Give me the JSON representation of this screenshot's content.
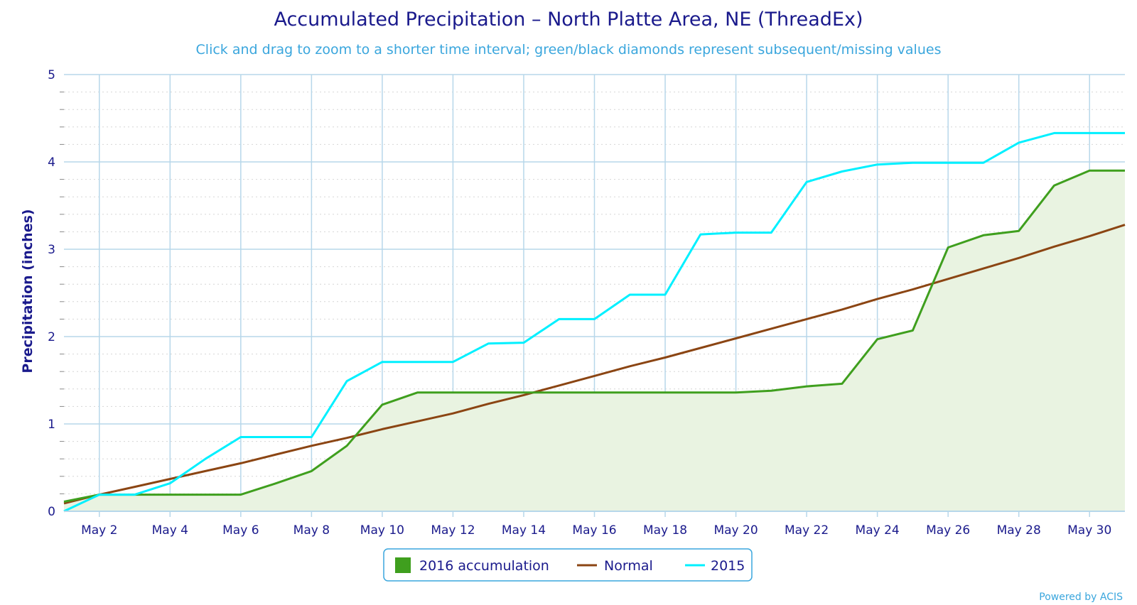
{
  "chart_data": {
    "type": "area",
    "title": "Accumulated Precipitation – North Platte Area, NE (ThreadEx)",
    "subtitle": "Click and drag to zoom to a shorter time interval; green/black diamonds represent subsequent/missing values",
    "ylabel": "Precipitation (inches)",
    "xlabel": "",
    "ylim": [
      0,
      5
    ],
    "xlim": [
      1,
      31
    ],
    "yticks": [
      "0",
      "1",
      "2",
      "3",
      "4",
      "5"
    ],
    "xtick_days": [
      2,
      4,
      6,
      8,
      10,
      12,
      14,
      16,
      18,
      20,
      22,
      24,
      26,
      28,
      30
    ],
    "xtick_labels": [
      "May 2",
      "May 4",
      "May 6",
      "May 8",
      "May 10",
      "May 12",
      "May 14",
      "May 16",
      "May 18",
      "May 20",
      "May 22",
      "May 24",
      "May 26",
      "May 28",
      "May 30"
    ],
    "grid": true,
    "legend_position": "bottom-center",
    "x": [
      1,
      2,
      3,
      4,
      5,
      6,
      7,
      8,
      9,
      10,
      11,
      12,
      13,
      14,
      15,
      16,
      17,
      18,
      19,
      20,
      21,
      22,
      23,
      24,
      25,
      26,
      27,
      28,
      29,
      30,
      31
    ],
    "series": [
      {
        "name": "2016 accumulation",
        "kind": "area",
        "color": "#3f9f1e",
        "fill": "#e9f3e1",
        "values": [
          0.11,
          0.19,
          0.19,
          0.19,
          0.19,
          0.19,
          0.32,
          0.46,
          0.75,
          1.22,
          1.36,
          1.36,
          1.36,
          1.36,
          1.36,
          1.36,
          1.36,
          1.36,
          1.36,
          1.36,
          1.38,
          1.43,
          1.46,
          1.97,
          2.07,
          3.02,
          3.16,
          3.21,
          3.73,
          3.9,
          3.9
        ]
      },
      {
        "name": "Normal",
        "kind": "line",
        "color": "#8b4513",
        "values": [
          0.09,
          0.19,
          0.28,
          0.37,
          0.46,
          0.55,
          0.65,
          0.75,
          0.84,
          0.94,
          1.03,
          1.12,
          1.23,
          1.33,
          1.44,
          1.55,
          1.66,
          1.76,
          1.87,
          1.98,
          2.09,
          2.2,
          2.31,
          2.43,
          2.54,
          2.66,
          2.78,
          2.9,
          3.03,
          3.15,
          3.28
        ]
      },
      {
        "name": "2015",
        "kind": "line",
        "color": "#00f0ff",
        "values": [
          0.0,
          0.19,
          0.19,
          0.32,
          0.6,
          0.85,
          0.85,
          0.85,
          1.49,
          1.71,
          1.71,
          1.71,
          1.92,
          1.93,
          2.2,
          2.2,
          2.48,
          2.48,
          3.17,
          3.19,
          3.19,
          3.77,
          3.89,
          3.97,
          3.99,
          3.99,
          3.99,
          4.22,
          4.33,
          4.33,
          4.33
        ]
      }
    ]
  },
  "credit": "Powered by ACIS",
  "colors": {
    "axis_text": "#1a1a8c",
    "grid_major": "#b7d7ea",
    "grid_minor": "#d9d9d9",
    "legend_border": "#3aa6dd"
  }
}
